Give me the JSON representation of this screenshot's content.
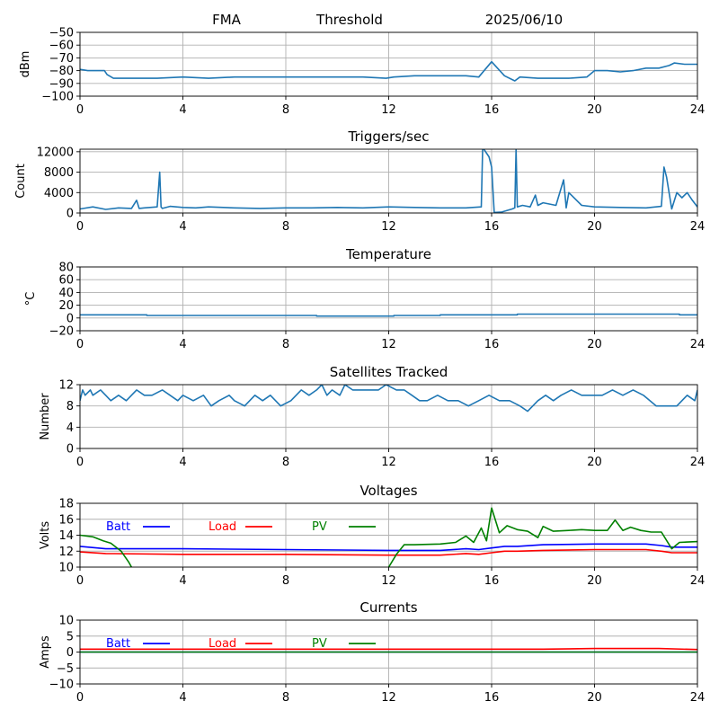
{
  "header": {
    "left": "FMA",
    "middle": "Threshold",
    "right": "2025/06/10"
  },
  "chart_data": [
    {
      "id": "threshold",
      "type": "line",
      "title": "",
      "ylabel": "dBm",
      "xlim": [
        0,
        24
      ],
      "ylim": [
        -100,
        -50
      ],
      "yticks": [
        -100,
        -90,
        -80,
        -70,
        -60,
        -50
      ],
      "xticks": [
        0,
        4,
        8,
        12,
        16,
        20,
        24
      ],
      "grid": true,
      "series": [
        {
          "color": "#1f77b4",
          "x": [
            0,
            0.3,
            0.6,
            0.95,
            1.05,
            1.3,
            2,
            3,
            4,
            5,
            6,
            7,
            8,
            9,
            10,
            11,
            11.9,
            12.2,
            13,
            14,
            15,
            15.5,
            16.0,
            16.5,
            16.9,
            17.1,
            17.8,
            18.2,
            19,
            19.7,
            20,
            20.5,
            21,
            21.5,
            22,
            22.5,
            22.9,
            23.1,
            23.5,
            24
          ],
          "y": [
            -79,
            -80,
            -80,
            -80,
            -83,
            -86,
            -86,
            -86,
            -85,
            -86,
            -85,
            -85,
            -85,
            -85,
            -85,
            -85,
            -86,
            -85,
            -84,
            -84,
            -84,
            -85,
            -73,
            -84,
            -88,
            -85,
            -86,
            -86,
            -86,
            -85,
            -80,
            -80,
            -81,
            -80,
            -78,
            -78,
            -76,
            -74,
            -75,
            -75
          ]
        }
      ]
    },
    {
      "id": "triggers",
      "type": "line",
      "title": "Triggers/sec",
      "ylabel": "Count",
      "xlim": [
        0,
        24
      ],
      "ylim": [
        0,
        12500
      ],
      "yticks": [
        0,
        4000,
        8000,
        12000
      ],
      "xticks": [
        0,
        4,
        8,
        12,
        16,
        20,
        24
      ],
      "grid": true,
      "series": [
        {
          "color": "#1f77b4",
          "x": [
            0,
            0.5,
            1,
            1.5,
            2,
            2.2,
            2.3,
            2.5,
            3,
            3.1,
            3.15,
            3.2,
            3.5,
            4,
            4.5,
            5,
            6,
            7,
            8,
            9,
            10,
            11,
            12,
            13,
            14,
            15,
            15.6,
            15.65,
            15.7,
            15.9,
            16.0,
            16.1,
            16.4,
            16.8,
            16.9,
            16.95,
            17.0,
            17.2,
            17.5,
            17.7,
            17.8,
            18,
            18.5,
            18.8,
            18.9,
            19,
            19.5,
            20,
            21,
            22,
            22.6,
            22.7,
            22.8,
            23,
            23.2,
            23.4,
            23.6,
            23.8,
            24
          ],
          "y": [
            800,
            1200,
            700,
            1000,
            900,
            2500,
            900,
            1000,
            1200,
            8000,
            1200,
            900,
            1300,
            1100,
            1000,
            1200,
            1000,
            900,
            1000,
            1000,
            1100,
            1000,
            1200,
            1100,
            1000,
            1000,
            1200,
            12500,
            12500,
            11000,
            9000,
            100,
            200,
            800,
            1000,
            12500,
            1200,
            1500,
            1200,
            3500,
            1500,
            2000,
            1500,
            6500,
            1000,
            4000,
            1500,
            1200,
            1100,
            1000,
            1300,
            9000,
            7000,
            800,
            4000,
            3000,
            4000,
            2500,
            1200
          ]
        }
      ]
    },
    {
      "id": "temperature",
      "type": "line",
      "title": "Temperature",
      "ylabel": "°C",
      "xlim": [
        0,
        24
      ],
      "ylim": [
        -20,
        80
      ],
      "yticks": [
        -20,
        0,
        20,
        40,
        60,
        80
      ],
      "xticks": [
        0,
        4,
        8,
        12,
        16,
        20,
        24
      ],
      "grid": true,
      "series": [
        {
          "color": "#1f77b4",
          "x": [
            0,
            2.6,
            2.6,
            9.2,
            9.2,
            12.2,
            12.2,
            14,
            14,
            17,
            17,
            23.3,
            23.3,
            24
          ],
          "y": [
            5,
            5,
            4,
            4,
            3,
            3,
            4,
            4,
            5,
            5,
            6,
            6,
            5,
            5
          ]
        }
      ]
    },
    {
      "id": "satellites",
      "type": "line",
      "title": "Satellites Tracked",
      "ylabel": "Number",
      "xlim": [
        0,
        24
      ],
      "ylim": [
        0,
        12
      ],
      "yticks": [
        0,
        4,
        8,
        12
      ],
      "xticks": [
        0,
        4,
        8,
        12,
        16,
        20,
        24
      ],
      "grid": true,
      "series": [
        {
          "color": "#1f77b4",
          "x": [
            0,
            0.1,
            0.2,
            0.4,
            0.5,
            0.8,
            1.0,
            1.2,
            1.5,
            1.8,
            2.0,
            2.2,
            2.5,
            2.8,
            3.2,
            3.5,
            3.8,
            4.0,
            4.4,
            4.8,
            5.1,
            5.4,
            5.8,
            6.0,
            6.4,
            6.8,
            7.1,
            7.4,
            7.8,
            8.2,
            8.4,
            8.6,
            8.9,
            9.2,
            9.4,
            9.6,
            9.8,
            10.1,
            10.3,
            10.6,
            10.9,
            11.3,
            11.6,
            11.9,
            12.3,
            12.6,
            12.9,
            13.2,
            13.5,
            13.9,
            14.3,
            14.7,
            15.1,
            15.5,
            15.9,
            16.3,
            16.7,
            17.1,
            17.4,
            17.6,
            17.8,
            18.1,
            18.4,
            18.7,
            19.1,
            19.5,
            19.9,
            20.3,
            20.7,
            21.1,
            21.5,
            21.9,
            22.4,
            22.8,
            23.2,
            23.6,
            23.9,
            24
          ],
          "y": [
            9,
            11,
            10,
            11,
            10,
            11,
            10,
            9,
            10,
            9,
            10,
            11,
            10,
            10,
            11,
            10,
            9,
            10,
            9,
            10,
            8,
            9,
            10,
            9,
            8,
            10,
            9,
            10,
            8,
            9,
            10,
            11,
            10,
            11,
            12,
            10,
            11,
            10,
            12,
            11,
            11,
            11,
            11,
            12,
            11,
            11,
            10,
            9,
            9,
            10,
            9,
            9,
            8,
            9,
            10,
            9,
            9,
            8,
            7,
            8,
            9,
            10,
            9,
            10,
            11,
            10,
            10,
            10,
            11,
            10,
            11,
            10,
            8,
            8,
            8,
            10,
            9,
            11
          ]
        }
      ]
    },
    {
      "id": "voltages",
      "type": "line",
      "title": "Voltages",
      "ylabel": "Volts",
      "xlim": [
        0,
        24
      ],
      "ylim": [
        10,
        18
      ],
      "yticks": [
        10,
        12,
        14,
        16,
        18
      ],
      "xticks": [
        0,
        4,
        8,
        12,
        16,
        20,
        24
      ],
      "grid": true,
      "legend": {
        "placement": "top-left",
        "entries": [
          "Batt",
          "Load",
          "PV"
        ]
      },
      "series": [
        {
          "name": "Batt",
          "color": "#0000ff",
          "x": [
            0,
            1,
            4,
            8,
            12,
            14,
            15,
            15.5,
            16,
            16.5,
            17,
            18,
            20,
            22,
            22.6,
            23,
            24
          ],
          "y": [
            12.6,
            12.3,
            12.3,
            12.2,
            12.1,
            12.1,
            12.3,
            12.2,
            12.4,
            12.6,
            12.6,
            12.8,
            12.9,
            12.9,
            12.7,
            12.5,
            12.5
          ]
        },
        {
          "name": "Load",
          "color": "#ff0000",
          "x": [
            0,
            1,
            4,
            8,
            12,
            14,
            15,
            15.5,
            16,
            16.5,
            17,
            18,
            20,
            22,
            22.6,
            23,
            24
          ],
          "y": [
            11.9,
            11.7,
            11.6,
            11.6,
            11.5,
            11.5,
            11.7,
            11.6,
            11.8,
            12.0,
            12.0,
            12.1,
            12.2,
            12.2,
            12.0,
            11.8,
            11.8
          ]
        },
        {
          "name": "PV",
          "color": "#008000",
          "x": [
            0,
            0.5,
            0.9,
            1.2,
            1.6,
            1.9,
            2.0
          ],
          "y": [
            14.0,
            13.8,
            13.3,
            13.0,
            12.0,
            10.6,
            10.0
          ]
        },
        {
          "name": "PV",
          "color": "#008000",
          "x": [
            12.0,
            12.3,
            12.6,
            13.0,
            14.0,
            14.6,
            15.0,
            15.3,
            15.6,
            15.8,
            16.0,
            16.3,
            16.6,
            17.0,
            17.4,
            17.8,
            18.0,
            18.4,
            19.0,
            19.5,
            20.0,
            20.5,
            20.8,
            21.1,
            21.4,
            21.8,
            22.2,
            22.6,
            23.0,
            23.3,
            24.0
          ],
          "y": [
            10.0,
            11.6,
            12.8,
            12.8,
            12.9,
            13.1,
            13.9,
            13.1,
            14.9,
            13.3,
            17.4,
            14.3,
            15.2,
            14.7,
            14.5,
            13.7,
            15.1,
            14.5,
            14.6,
            14.7,
            14.6,
            14.6,
            15.9,
            14.6,
            15.0,
            14.6,
            14.4,
            14.4,
            12.3,
            13.1,
            13.2
          ]
        }
      ]
    },
    {
      "id": "currents",
      "type": "line",
      "title": "Currents",
      "ylabel": "Amps",
      "xlim": [
        0,
        24
      ],
      "ylim": [
        -10,
        10
      ],
      "yticks": [
        -10,
        -5,
        0,
        5,
        10
      ],
      "xticks": [
        0,
        4,
        8,
        12,
        16,
        20,
        24
      ],
      "grid": true,
      "legend": {
        "placement": "top-left",
        "entries": [
          "Batt",
          "Load",
          "PV"
        ]
      },
      "series": [
        {
          "name": "Batt",
          "color": "#0000ff",
          "x": [
            0,
            24
          ],
          "y": [
            0,
            0
          ]
        },
        {
          "name": "Load",
          "color": "#ff0000",
          "x": [
            0,
            18,
            20,
            22.5,
            24
          ],
          "y": [
            0.9,
            0.9,
            1.1,
            1.1,
            0.8
          ]
        },
        {
          "name": "PV",
          "color": "#008000",
          "x": [
            0,
            24
          ],
          "y": [
            0,
            0
          ]
        }
      ]
    }
  ]
}
